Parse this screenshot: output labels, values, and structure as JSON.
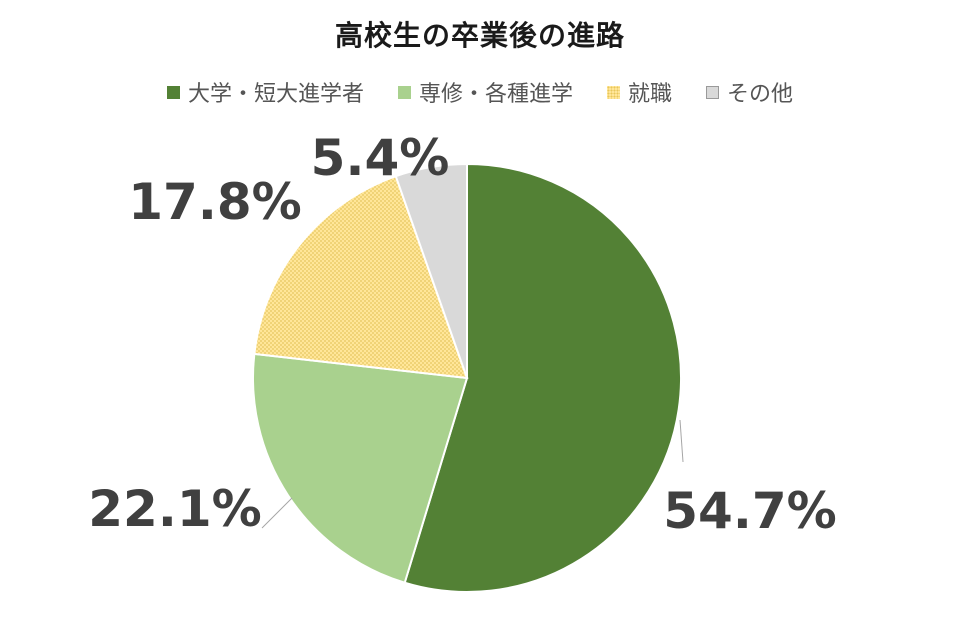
{
  "chart_data": {
    "type": "pie",
    "title": "高校生の卒業後の進路",
    "categories": [
      "大学・短大進学者",
      "専修・各種進学",
      "就職",
      "その他"
    ],
    "values": [
      54.7,
      22.1,
      17.8,
      5.4
    ],
    "labels": [
      "54.7%",
      "22.1%",
      "17.8%",
      "5.4%"
    ],
    "colors": [
      "#538135",
      "#A9D18E",
      "#FFE699",
      "#D9D9D9"
    ],
    "legend_position": "top",
    "start_angle": "12 o'clock, clockwise"
  }
}
